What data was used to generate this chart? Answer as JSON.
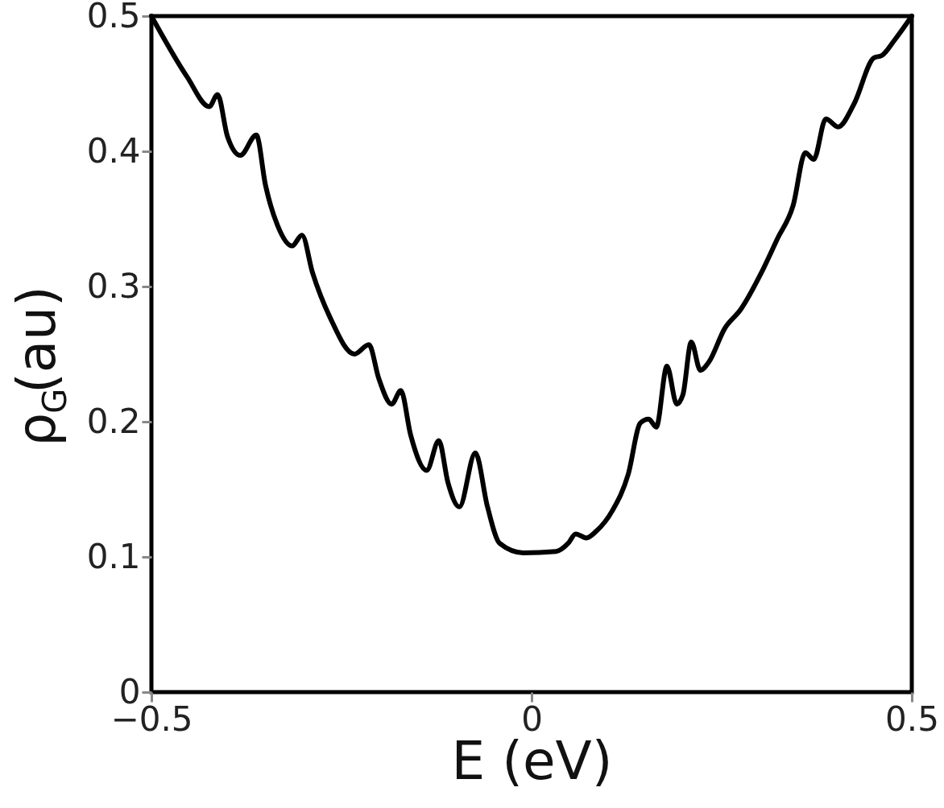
{
  "chart_data": {
    "type": "line",
    "xlabel": "E (eV)",
    "ylabel": "ρ$_{G}$(au)",
    "xlim": [
      -0.5,
      0.5
    ],
    "ylim": [
      0,
      0.5
    ],
    "xticks": [
      {
        "value": -0.5,
        "label": "−0.5"
      },
      0,
      0.5
    ],
    "yticks": [
      0,
      0.1,
      0.2,
      0.3,
      0.4,
      0.5
    ],
    "grid": false,
    "marker": "none",
    "line_style": "solid",
    "series": [
      {
        "color": "#000000",
        "x": [
          -0.5,
          -0.453,
          -0.424,
          -0.413,
          -0.4,
          -0.383,
          -0.362,
          -0.35,
          -0.334,
          -0.315,
          -0.302,
          -0.288,
          -0.265,
          -0.233,
          -0.214,
          -0.201,
          -0.184,
          -0.172,
          -0.159,
          -0.138,
          -0.122,
          -0.11,
          -0.095,
          -0.074,
          -0.058,
          -0.042,
          -0.011,
          0.032,
          0.048,
          0.058,
          0.072,
          0.085,
          0.106,
          0.127,
          0.143,
          0.154,
          0.164,
          0.178,
          0.191,
          0.199,
          0.21,
          0.222,
          0.233,
          0.254,
          0.275,
          0.302,
          0.323,
          0.344,
          0.36,
          0.371,
          0.387,
          0.403,
          0.424,
          0.45,
          0.461,
          0.477,
          0.5
        ],
        "values": [
          0.5,
          0.455,
          0.433,
          0.442,
          0.411,
          0.397,
          0.412,
          0.375,
          0.345,
          0.33,
          0.338,
          0.31,
          0.277,
          0.25,
          0.257,
          0.232,
          0.213,
          0.223,
          0.19,
          0.164,
          0.186,
          0.155,
          0.137,
          0.177,
          0.137,
          0.11,
          0.103,
          0.104,
          0.11,
          0.117,
          0.114,
          0.119,
          0.134,
          0.161,
          0.199,
          0.202,
          0.196,
          0.241,
          0.213,
          0.22,
          0.259,
          0.238,
          0.244,
          0.269,
          0.283,
          0.31,
          0.335,
          0.36,
          0.399,
          0.394,
          0.424,
          0.418,
          0.435,
          0.469,
          0.471,
          0.482,
          0.5
        ]
      }
    ]
  }
}
